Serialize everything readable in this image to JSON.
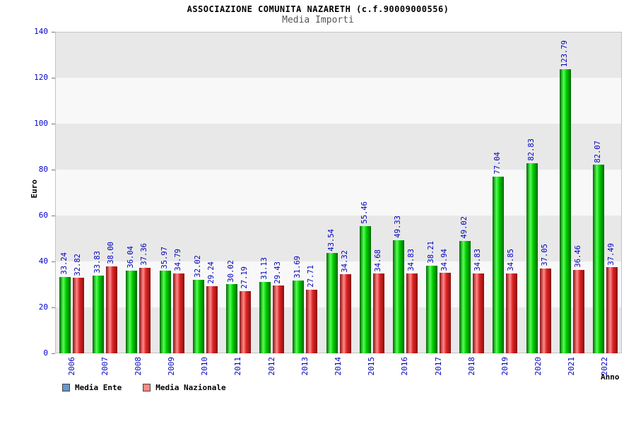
{
  "title": "ASSOCIAZIONE COMUNITA NAZARETH (c.f.90009000556)",
  "subtitle": "Media Importi",
  "axes": {
    "y_label": "Euro",
    "x_label": "Anno"
  },
  "legend": [
    {
      "label": "Media Ente",
      "swatch": "#6699cc"
    },
    {
      "label": "Media Nazionale",
      "swatch": "#ff8888"
    }
  ],
  "colors": {
    "band_dark": "#e8e8e8",
    "band_light": "#f8f8f8",
    "tick_text": "#0000cc",
    "value_label_text": "#0000bb",
    "axis_line": "#c3c3c3"
  },
  "chart_data": {
    "type": "bar",
    "title": "Media Importi",
    "xlabel": "Anno",
    "ylabel": "Euro",
    "ylim": [
      0,
      140
    ],
    "ytick_step": 20,
    "grid": "banded",
    "legend_position": "bottom-left",
    "value_labels": true,
    "categories": [
      "2006",
      "2007",
      "2008",
      "2009",
      "2010",
      "2011",
      "2012",
      "2013",
      "2014",
      "2015",
      "2016",
      "2017",
      "2018",
      "2019",
      "2020",
      "2021",
      "2022"
    ],
    "series": [
      {
        "name": "Media Ente",
        "color": "#00cc00",
        "highlight": "#55ff55",
        "shadow": "#006600",
        "values": [
          33.24,
          33.83,
          36.04,
          35.97,
          32.02,
          30.02,
          31.13,
          31.69,
          43.54,
          55.46,
          49.33,
          38.21,
          49.02,
          77.04,
          82.83,
          123.79,
          82.07
        ]
      },
      {
        "name": "Media Nazionale",
        "color": "#dd2222",
        "highlight": "#ff8a8a",
        "shadow": "#881111",
        "values": [
          32.82,
          38.0,
          37.36,
          34.79,
          29.24,
          27.19,
          29.43,
          27.71,
          34.32,
          34.68,
          34.83,
          34.94,
          34.83,
          34.85,
          37.05,
          36.46,
          37.49
        ]
      }
    ]
  }
}
